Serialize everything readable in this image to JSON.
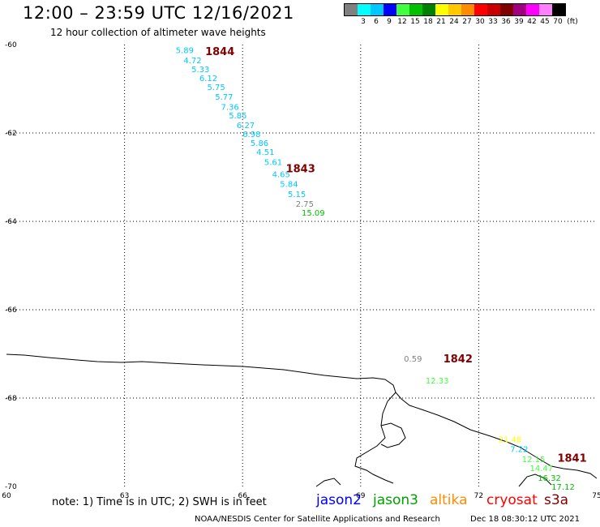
{
  "header": {
    "title": "12:00 – 23:59 UTC 12/16/2021",
    "subtitle": "12 hour collection of altimeter wave heights"
  },
  "legend": {
    "unit": "(ft)",
    "items": [
      {
        "label": "",
        "color": "#808080"
      },
      {
        "label": "3",
        "color": "#00ffff"
      },
      {
        "label": "6",
        "color": "#00c8ff"
      },
      {
        "label": "9",
        "color": "#0000ff"
      },
      {
        "label": "12",
        "color": "#40ff40"
      },
      {
        "label": "15",
        "color": "#00c000"
      },
      {
        "label": "18",
        "color": "#008000"
      },
      {
        "label": "21",
        "color": "#ffff00"
      },
      {
        "label": "24",
        "color": "#ffc800"
      },
      {
        "label": "27",
        "color": "#ff8c00"
      },
      {
        "label": "30",
        "color": "#ff0000"
      },
      {
        "label": "33",
        "color": "#c80000"
      },
      {
        "label": "36",
        "color": "#800000"
      },
      {
        "label": "39",
        "color": "#a00080"
      },
      {
        "label": "42",
        "color": "#ff00ff"
      },
      {
        "label": "45",
        "color": "#ff80ff"
      },
      {
        "label": "70",
        "color": "#000000"
      }
    ]
  },
  "map": {
    "lon_range": [
      60,
      75
    ],
    "lat_range": [
      -70,
      -60
    ],
    "lon_ticks": [
      "60",
      "63",
      "66",
      "69",
      "72",
      "75"
    ],
    "lat_ticks": [
      "-60",
      "-62",
      "-64",
      "-66",
      "-68",
      "-70"
    ],
    "grid_lons": [
      63,
      66,
      69,
      72
    ],
    "grid_lats": [
      -62,
      -64,
      -66,
      -68
    ],
    "pass_labels": [
      {
        "text": "1844",
        "lon": 65.05,
        "lat": -60.15,
        "color": "#800000"
      },
      {
        "text": "1843",
        "lon": 67.1,
        "lat": -62.8,
        "color": "#800000"
      },
      {
        "text": "1842",
        "lon": 71.1,
        "lat": -67.1,
        "color": "#800000"
      },
      {
        "text": "1841",
        "lon": 74.0,
        "lat": -69.35,
        "color": "#800000"
      }
    ],
    "observations": [
      {
        "text": "5.89",
        "lon": 64.3,
        "lat": -60.12,
        "color": "#00c8ff"
      },
      {
        "text": "4.72",
        "lon": 64.5,
        "lat": -60.35,
        "color": "#00c8ff"
      },
      {
        "text": "5.33",
        "lon": 64.7,
        "lat": -60.55,
        "color": "#00c8ff"
      },
      {
        "text": "6.12",
        "lon": 64.9,
        "lat": -60.75,
        "color": "#00c8ff"
      },
      {
        "text": "5.75",
        "lon": 65.1,
        "lat": -60.95,
        "color": "#00c8ff"
      },
      {
        "text": "5.77",
        "lon": 65.3,
        "lat": -61.17,
        "color": "#00c8ff"
      },
      {
        "text": "7.36",
        "lon": 65.45,
        "lat": -61.4,
        "color": "#00c8ff"
      },
      {
        "text": "5.85",
        "lon": 65.65,
        "lat": -61.6,
        "color": "#00c8ff"
      },
      {
        "text": "6.27",
        "lon": 65.85,
        "lat": -61.82,
        "color": "#00c8ff"
      },
      {
        "text": "6.98",
        "lon": 66.0,
        "lat": -62.02,
        "color": "#00c8ff"
      },
      {
        "text": "5.86",
        "lon": 66.2,
        "lat": -62.22,
        "color": "#00c8ff"
      },
      {
        "text": "4.51",
        "lon": 66.35,
        "lat": -62.42,
        "color": "#00c8ff"
      },
      {
        "text": "5.61",
        "lon": 66.55,
        "lat": -62.65,
        "color": "#00c8ff"
      },
      {
        "text": "4.65",
        "lon": 66.75,
        "lat": -62.93,
        "color": "#00c8ff"
      },
      {
        "text": "5.84",
        "lon": 66.95,
        "lat": -63.15,
        "color": "#00c8ff"
      },
      {
        "text": "5.15",
        "lon": 67.15,
        "lat": -63.38,
        "color": "#00c8ff"
      },
      {
        "text": "2.75",
        "lon": 67.35,
        "lat": -63.6,
        "color": "#808080"
      },
      {
        "text": "15.09",
        "lon": 67.5,
        "lat": -63.8,
        "color": "#00c000"
      },
      {
        "text": "0.59",
        "lon": 70.1,
        "lat": -67.1,
        "color": "#808080"
      },
      {
        "text": "12.33",
        "lon": 70.65,
        "lat": -67.6,
        "color": "#40ff40"
      },
      {
        "text": "21.48",
        "lon": 72.5,
        "lat": -68.93,
        "color": "#ffff00"
      },
      {
        "text": "7.22",
        "lon": 72.8,
        "lat": -69.15,
        "color": "#00c8ff"
      },
      {
        "text": "12.15",
        "lon": 73.1,
        "lat": -69.38,
        "color": "#40ff40"
      },
      {
        "text": "14.47",
        "lon": 73.3,
        "lat": -69.58,
        "color": "#40ff40"
      },
      {
        "text": "16.32",
        "lon": 73.5,
        "lat": -69.8,
        "color": "#00c000"
      },
      {
        "text": "17.12",
        "lon": 73.85,
        "lat": -70.0,
        "color": "#00c000"
      }
    ]
  },
  "footer": {
    "note": "note: 1) Time is in UTC; 2) SWH is in feet",
    "satellites": [
      {
        "name": "jason2",
        "color": "#0000ff"
      },
      {
        "name": "jason3",
        "color": "#00a000"
      },
      {
        "name": "altika",
        "color": "#ff8c00"
      },
      {
        "name": "cryosat",
        "color": "#ff0000"
      },
      {
        "name": "s3a",
        "color": "#800000"
      }
    ],
    "credit": "NOAA/NESDIS Center for Satellite Applications and Research",
    "generated": "Dec 18 08:30:12 UTC 2021"
  }
}
